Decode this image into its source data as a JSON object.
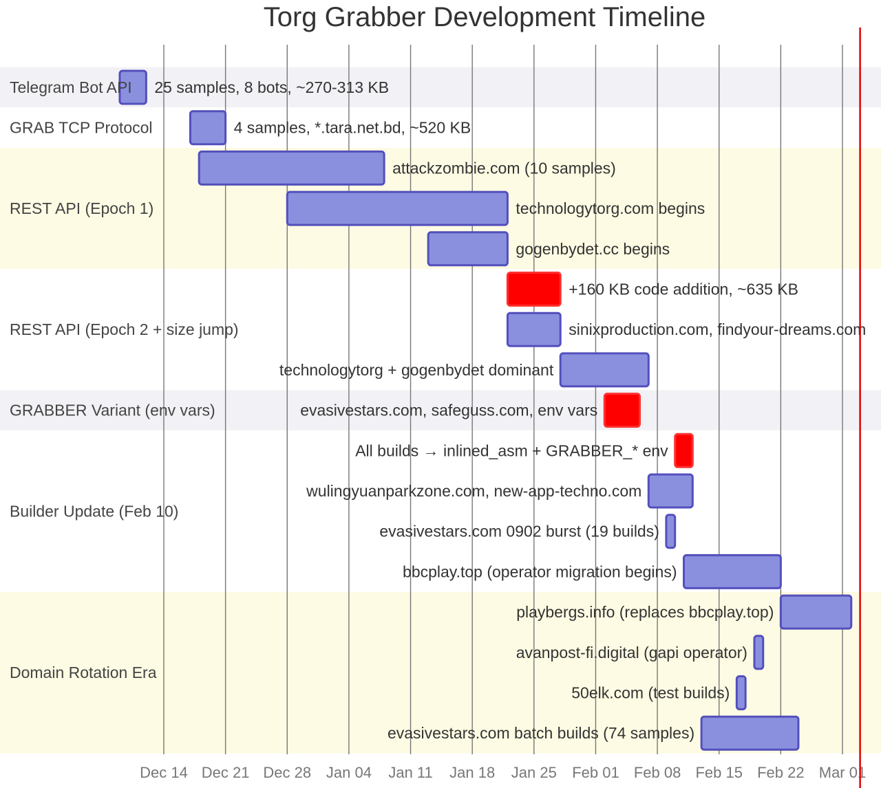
{
  "chart_data": {
    "type": "gantt",
    "title": "Torg Grabber Development Timeline",
    "x_range": [
      "2024-12-14",
      "2025-03-01"
    ],
    "x_ticks": [
      "Dec 14",
      "Dec 21",
      "Dec 28",
      "Jan 04",
      "Jan 11",
      "Jan 18",
      "Jan 25",
      "Feb 01",
      "Feb 08",
      "Feb 15",
      "Feb 22",
      "Mar 01"
    ],
    "grid": true,
    "today_marker": "2025-03-03",
    "colors": {
      "task_fill": "#8a90dd",
      "task_stroke": "#534fbc",
      "critical": "#ff0000",
      "today": "#e00000",
      "section_bands": [
        "#f2f2f6",
        "#ffffff",
        "#fdfbe3",
        "#ffffff"
      ]
    },
    "sections": [
      {
        "name": "Telegram Bot API",
        "tasks": [
          {
            "text": "25 samples, 8 bots, ~270-313 KB",
            "start": "2024-12-09",
            "end": "2024-12-12",
            "critical": false
          }
        ]
      },
      {
        "name": "GRAB TCP Protocol",
        "tasks": [
          {
            "text": "4 samples, *.tara.net.bd, ~520 KB",
            "start": "2024-12-17",
            "end": "2024-12-21",
            "critical": false
          }
        ]
      },
      {
        "name": "REST API (Epoch 1)",
        "tasks": [
          {
            "text": "attackzombie.com (10 samples)",
            "start": "2024-12-18",
            "end": "2025-01-08",
            "critical": false
          },
          {
            "text": "technologytorg.com begins",
            "start": "2024-12-28",
            "end": "2025-01-22",
            "critical": false
          },
          {
            "text": "gogenbydet.cc begins",
            "start": "2025-01-13",
            "end": "2025-01-22",
            "critical": false
          }
        ]
      },
      {
        "name": "REST API (Epoch 2 + size jump)",
        "tasks": [
          {
            "text": "+160 KB code addition, ~635 KB",
            "start": "2025-01-22",
            "end": "2025-01-28",
            "critical": true
          },
          {
            "text": "sinixproduction.com, findyour-dreams.com",
            "start": "2025-01-22",
            "end": "2025-01-28",
            "critical": false
          },
          {
            "text": "technologytorg + gogenbydet dominant",
            "start": "2025-01-28",
            "end": "2025-02-07",
            "critical": false
          }
        ]
      },
      {
        "name": "GRABBER Variant (env vars)",
        "tasks": [
          {
            "text": "evasivestars.com, safeguss.com, env vars",
            "start": "2025-02-02",
            "end": "2025-02-06",
            "critical": true
          }
        ]
      },
      {
        "name": "Builder Update (Feb 10)",
        "tasks": [
          {
            "text": "All builds → inlined_asm + GRABBER_* env",
            "start": "2025-02-10",
            "end": "2025-02-12",
            "critical": true
          },
          {
            "text": "wulingyuanparkzone.com, new-app-techno.com",
            "start": "2025-02-07",
            "end": "2025-02-12",
            "critical": false
          },
          {
            "text": "evasivestars.com 0902 burst (19 builds)",
            "start": "2025-02-09",
            "end": "2025-02-10",
            "critical": false
          },
          {
            "text": "bbcplay.top (operator migration begins)",
            "start": "2025-02-11",
            "end": "2025-02-22",
            "critical": false
          }
        ]
      },
      {
        "name": "Domain Rotation Era",
        "tasks": [
          {
            "text": "playbergs.info (replaces bbcplay.top)",
            "start": "2025-02-22",
            "end": "2025-03-02",
            "critical": false
          },
          {
            "text": "avanpost-fi.digital (gapi operator)",
            "start": "2025-02-19",
            "end": "2025-02-20",
            "critical": false
          },
          {
            "text": "50elk.com (test builds)",
            "start": "2025-02-17",
            "end": "2025-02-18",
            "critical": false
          },
          {
            "text": "evasivestars.com batch builds (74 samples)",
            "start": "2025-02-13",
            "end": "2025-02-24",
            "critical": false
          }
        ]
      }
    ]
  }
}
